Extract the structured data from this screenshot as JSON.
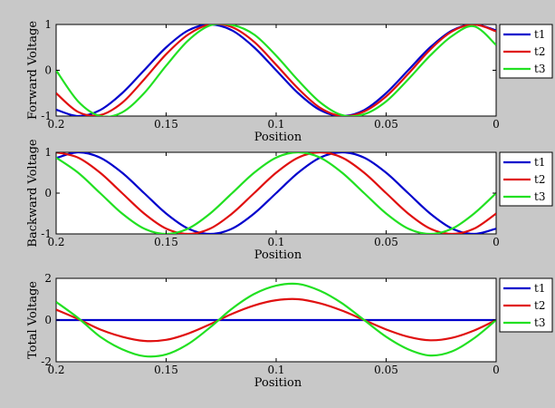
{
  "figure": {
    "background": "#c8c8c8"
  },
  "chart_data": [
    {
      "type": "line",
      "title": "",
      "xlabel": "Position",
      "ylabel": "Forward Voltage",
      "xlim": [
        0.2,
        0
      ],
      "ylim": [
        -1,
        1
      ],
      "xticks": [
        "0.2",
        "0.15",
        "0.1",
        "0.05",
        "0"
      ],
      "yticks": [
        "-1",
        "0",
        "1"
      ],
      "legend": {
        "position": "outside-right",
        "entries": [
          "t1",
          "t2",
          "t3"
        ]
      },
      "grid": false,
      "series": [
        {
          "name": "t1",
          "color": "#0000cc",
          "x": [
            0.2,
            0.19,
            0.18,
            0.17,
            0.16,
            0.15,
            0.14,
            0.13,
            0.12,
            0.11,
            0.1,
            0.09,
            0.08,
            0.07,
            0.06,
            0.05,
            0.04,
            0.03,
            0.02,
            0.01,
            0
          ],
          "y": [
            -0.86,
            -1,
            -0.87,
            -0.5,
            0,
            0.5,
            0.87,
            1,
            0.87,
            0.5,
            0,
            -0.5,
            -0.87,
            -1,
            -0.87,
            -0.5,
            0,
            0.5,
            0.87,
            1,
            0.87
          ]
        },
        {
          "name": "t2",
          "color": "#e01010",
          "x": [
            0.2,
            0.19,
            0.18,
            0.17,
            0.16,
            0.15,
            0.14,
            0.13,
            0.12,
            0.11,
            0.1,
            0.09,
            0.08,
            0.07,
            0.06,
            0.05,
            0.04,
            0.03,
            0.02,
            0.01,
            0
          ],
          "y": [
            -0.5,
            -0.91,
            -0.98,
            -0.71,
            -0.2,
            0.35,
            0.78,
            1,
            0.94,
            0.62,
            0.12,
            -0.4,
            -0.82,
            -1,
            -0.9,
            -0.57,
            -0.08,
            0.45,
            0.85,
            1,
            0.85
          ]
        },
        {
          "name": "t3",
          "color": "#22e022",
          "x": [
            0.2,
            0.19,
            0.18,
            0.17,
            0.16,
            0.15,
            0.14,
            0.13,
            0.12,
            0.11,
            0.1,
            0.09,
            0.08,
            0.07,
            0.06,
            0.05,
            0.04,
            0.03,
            0.02,
            0.01,
            0
          ],
          "y": [
            0,
            -0.68,
            -1,
            -0.92,
            -0.5,
            0.1,
            0.65,
            0.98,
            0.99,
            0.78,
            0.32,
            -0.22,
            -0.7,
            -0.98,
            -0.96,
            -0.68,
            -0.2,
            0.32,
            0.75,
            0.96,
            0.55
          ]
        }
      ]
    },
    {
      "type": "line",
      "title": "",
      "xlabel": "Position",
      "ylabel": "Backward Voltage",
      "xlim": [
        0.2,
        0
      ],
      "ylim": [
        -1,
        1
      ],
      "xticks": [
        "0.2",
        "0.15",
        "0.1",
        "0.05",
        "0"
      ],
      "yticks": [
        "-1",
        "0",
        "1"
      ],
      "legend": {
        "position": "outside-right",
        "entries": [
          "t1",
          "t2",
          "t3"
        ]
      },
      "grid": false,
      "series": [
        {
          "name": "t1",
          "color": "#0000cc",
          "x": [
            0.2,
            0.19,
            0.18,
            0.17,
            0.16,
            0.15,
            0.14,
            0.13,
            0.12,
            0.11,
            0.1,
            0.09,
            0.08,
            0.07,
            0.06,
            0.05,
            0.04,
            0.03,
            0.02,
            0.01,
            0
          ],
          "y": [
            0.86,
            1,
            0.87,
            0.5,
            0,
            -0.5,
            -0.87,
            -1,
            -0.87,
            -0.5,
            0,
            0.5,
            0.87,
            1,
            0.87,
            0.5,
            0,
            -0.5,
            -0.87,
            -1,
            -0.87
          ]
        },
        {
          "name": "t2",
          "color": "#e01010",
          "x": [
            0.2,
            0.19,
            0.18,
            0.17,
            0.16,
            0.15,
            0.14,
            0.13,
            0.12,
            0.11,
            0.1,
            0.09,
            0.08,
            0.07,
            0.06,
            0.05,
            0.04,
            0.03,
            0.02,
            0.01,
            0
          ],
          "y": [
            1,
            0.87,
            0.5,
            0,
            -0.5,
            -0.87,
            -1,
            -0.87,
            -0.5,
            0,
            0.5,
            0.87,
            1,
            0.87,
            0.5,
            0,
            -0.5,
            -0.87,
            -1,
            -0.87,
            -0.5
          ]
        },
        {
          "name": "t3",
          "color": "#22e022",
          "x": [
            0.2,
            0.19,
            0.18,
            0.17,
            0.16,
            0.15,
            0.14,
            0.13,
            0.12,
            0.11,
            0.1,
            0.09,
            0.08,
            0.07,
            0.06,
            0.05,
            0.04,
            0.03,
            0.02,
            0.01,
            0
          ],
          "y": [
            0.87,
            0.5,
            0,
            -0.5,
            -0.87,
            -1,
            -0.87,
            -0.5,
            0,
            0.5,
            0.87,
            1,
            0.87,
            0.5,
            0,
            -0.5,
            -0.87,
            -1,
            -0.87,
            -0.5,
            0
          ]
        }
      ]
    },
    {
      "type": "line",
      "title": "",
      "xlabel": "Position",
      "ylabel": "Total Voltage",
      "xlim": [
        0.2,
        0
      ],
      "ylim": [
        -2,
        2
      ],
      "xticks": [
        "0.2",
        "0.15",
        "0.1",
        "0.05",
        "0"
      ],
      "yticks": [
        "-2",
        "0",
        "2"
      ],
      "legend": {
        "position": "outside-right",
        "entries": [
          "t1",
          "t2",
          "t3"
        ]
      },
      "grid": false,
      "series": [
        {
          "name": "t1",
          "color": "#0000cc",
          "x": [
            0.2,
            0.19,
            0.18,
            0.17,
            0.16,
            0.15,
            0.14,
            0.13,
            0.12,
            0.11,
            0.1,
            0.09,
            0.08,
            0.07,
            0.06,
            0.05,
            0.04,
            0.03,
            0.02,
            0.01,
            0
          ],
          "y": [
            0,
            0,
            0,
            0,
            0,
            0,
            0,
            0,
            0,
            0,
            0,
            0,
            0,
            0,
            0,
            0,
            0,
            0,
            0,
            0,
            0
          ]
        },
        {
          "name": "t2",
          "color": "#e01010",
          "x": [
            0.2,
            0.19,
            0.18,
            0.17,
            0.16,
            0.15,
            0.14,
            0.13,
            0.12,
            0.11,
            0.1,
            0.09,
            0.08,
            0.07,
            0.06,
            0.05,
            0.04,
            0.03,
            0.02,
            0.01,
            0
          ],
          "y": [
            0.5,
            0.05,
            -0.45,
            -0.8,
            -1,
            -0.95,
            -0.65,
            -0.2,
            0.3,
            0.7,
            0.95,
            1,
            0.8,
            0.45,
            0,
            -0.45,
            -0.8,
            -0.97,
            -0.85,
            -0.5,
            0
          ]
        },
        {
          "name": "t3",
          "color": "#22e022",
          "x": [
            0.2,
            0.19,
            0.18,
            0.17,
            0.16,
            0.15,
            0.14,
            0.13,
            0.12,
            0.11,
            0.1,
            0.09,
            0.08,
            0.07,
            0.06,
            0.05,
            0.04,
            0.03,
            0.02,
            0.01,
            0
          ],
          "y": [
            0.87,
            0.1,
            -0.8,
            -1.4,
            -1.73,
            -1.65,
            -1.15,
            -0.35,
            0.55,
            1.25,
            1.65,
            1.73,
            1.4,
            0.8,
            0,
            -0.8,
            -1.4,
            -1.7,
            -1.5,
            -0.87,
            0
          ]
        }
      ]
    }
  ]
}
